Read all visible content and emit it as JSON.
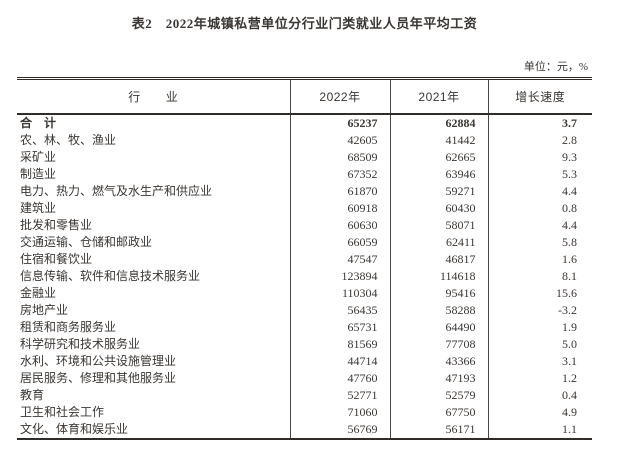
{
  "page": {
    "title": "表2　2022年城镇私营单位分行业门类就业人员年平均工资",
    "unit_label": "单位：元，%"
  },
  "colors": {
    "text": "#3a3633",
    "border_strong": "#2f2c2a",
    "border_thin": "#4a4644",
    "background": "#ffffff"
  },
  "table": {
    "headers": [
      "行　　业",
      "2022年",
      "2021年",
      "增长速度"
    ],
    "rows": [
      {
        "industry": "合　计",
        "y2022": "65237",
        "y2021": "62884",
        "growth": "3.7",
        "bold": true
      },
      {
        "industry": "农、林、牧、渔业",
        "y2022": "42605",
        "y2021": "41442",
        "growth": "2.8",
        "bold": false
      },
      {
        "industry": "采矿业",
        "y2022": "68509",
        "y2021": "62665",
        "growth": "9.3",
        "bold": false
      },
      {
        "industry": "制造业",
        "y2022": "67352",
        "y2021": "63946",
        "growth": "5.3",
        "bold": false
      },
      {
        "industry": "电力、热力、燃气及水生产和供应业",
        "y2022": "61870",
        "y2021": "59271",
        "growth": "4.4",
        "bold": false
      },
      {
        "industry": "建筑业",
        "y2022": "60918",
        "y2021": "60430",
        "growth": "0.8",
        "bold": false
      },
      {
        "industry": "批发和零售业",
        "y2022": "60630",
        "y2021": "58071",
        "growth": "4.4",
        "bold": false
      },
      {
        "industry": "交通运输、仓储和邮政业",
        "y2022": "66059",
        "y2021": "62411",
        "growth": "5.8",
        "bold": false
      },
      {
        "industry": "住宿和餐饮业",
        "y2022": "47547",
        "y2021": "46817",
        "growth": "1.6",
        "bold": false
      },
      {
        "industry": "信息传输、软件和信息技术服务业",
        "y2022": "123894",
        "y2021": "114618",
        "growth": "8.1",
        "bold": false
      },
      {
        "industry": "金融业",
        "y2022": "110304",
        "y2021": "95416",
        "growth": "15.6",
        "bold": false
      },
      {
        "industry": "房地产业",
        "y2022": "56435",
        "y2021": "58288",
        "growth": "-3.2",
        "bold": false
      },
      {
        "industry": "租赁和商务服务业",
        "y2022": "65731",
        "y2021": "64490",
        "growth": "1.9",
        "bold": false
      },
      {
        "industry": "科学研究和技术服务业",
        "y2022": "81569",
        "y2021": "77708",
        "growth": "5.0",
        "bold": false
      },
      {
        "industry": "水利、环境和公共设施管理业",
        "y2022": "44714",
        "y2021": "43366",
        "growth": "3.1",
        "bold": false
      },
      {
        "industry": "居民服务、修理和其他服务业",
        "y2022": "47760",
        "y2021": "47193",
        "growth": "1.2",
        "bold": false
      },
      {
        "industry": "教育",
        "y2022": "52771",
        "y2021": "52579",
        "growth": "0.4",
        "bold": false
      },
      {
        "industry": "卫生和社会工作",
        "y2022": "71060",
        "y2021": "67750",
        "growth": "4.9",
        "bold": false
      },
      {
        "industry": "文化、体育和娱乐业",
        "y2022": "56769",
        "y2021": "56171",
        "growth": "1.1",
        "bold": false
      }
    ]
  }
}
